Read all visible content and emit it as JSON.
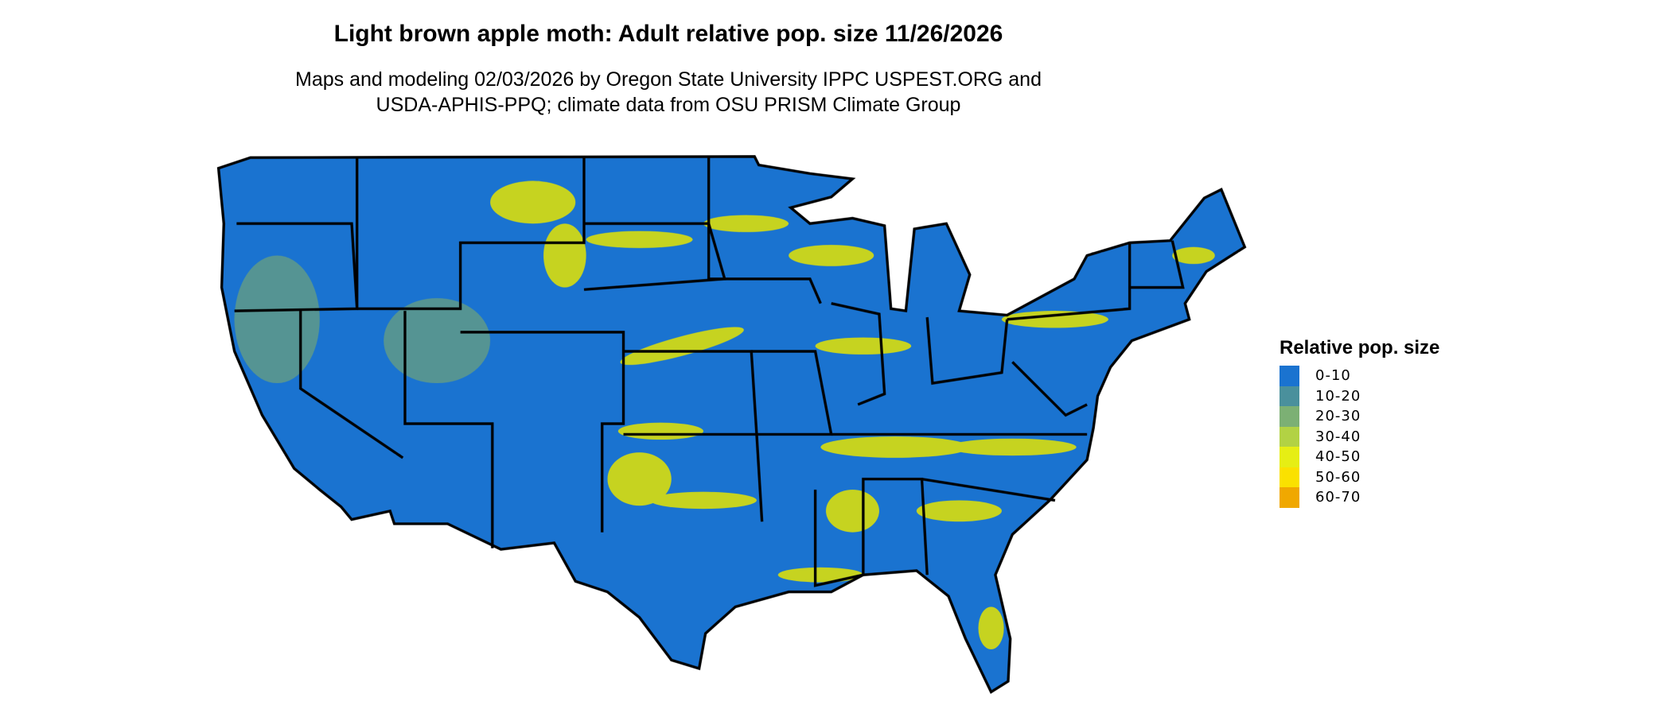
{
  "title": "Light brown apple moth: Adult relative pop. size 11/26/2026",
  "subtitle_line1": "Maps and modeling 02/03/2026 by Oregon State University IPPC USPEST.ORG and",
  "subtitle_line2": "USDA-APHIS-PPQ; climate data from OSU PRISM Climate Group",
  "legend": {
    "title": "Relative pop. size",
    "items": [
      {
        "label": "0-10",
        "color": "#1a73d0"
      },
      {
        "label": "10-20",
        "color": "#4a909c"
      },
      {
        "label": "20-30",
        "color": "#7cb074"
      },
      {
        "label": "30-40",
        "color": "#b2d244"
      },
      {
        "label": "40-50",
        "color": "#e6ee14"
      },
      {
        "label": "50-60",
        "color": "#fae100"
      },
      {
        "label": "60-70",
        "color": "#f0a800"
      }
    ]
  },
  "map": {
    "region": "Contiguous United States",
    "base_color": "#1a73d0",
    "highlight_color": "#e6e600",
    "border_color": "#000000"
  }
}
